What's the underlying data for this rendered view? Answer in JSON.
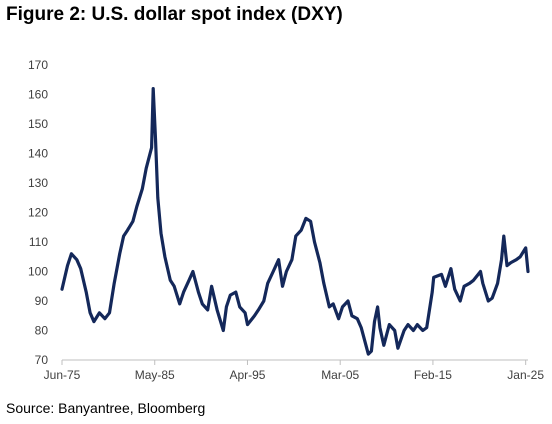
{
  "title": "Figure 2: U.S. dollar spot index (DXY)",
  "source": "Source: Banyantree, Bloomberg",
  "colors": {
    "line": "#14285a",
    "axis": "#bfbfbf",
    "tick_text": "#404040"
  },
  "chart_data": {
    "type": "line",
    "title": "Figure 2: U.S. dollar spot index (DXY)",
    "xlabel": "",
    "ylabel": "",
    "x_tick_labels": [
      "Jun-75",
      "May-85",
      "Apr-95",
      "Mar-05",
      "Feb-15",
      "Jan-25"
    ],
    "x_tick_dates": [
      "1975-06",
      "1985-05",
      "1995-04",
      "2005-03",
      "2015-02",
      "2025-01"
    ],
    "y_ticks": [
      70,
      80,
      90,
      100,
      110,
      120,
      130,
      140,
      150,
      160,
      170
    ],
    "ylim": [
      70,
      170
    ],
    "xlim": [
      "1975-06",
      "2025-04"
    ],
    "grid": false,
    "legend": "none",
    "series": [
      {
        "x": [
          "1975-06",
          "1976-01",
          "1976-06",
          "1977-01",
          "1977-06",
          "1978-01",
          "1978-06",
          "1978-11",
          "1979-06",
          "1980-01",
          "1980-07",
          "1981-01",
          "1981-08",
          "1982-01",
          "1982-06",
          "1983-01",
          "1983-06",
          "1984-01",
          "1984-06",
          "1985-01",
          "1985-03",
          "1985-06",
          "1985-09",
          "1986-01",
          "1986-06",
          "1987-01",
          "1987-06",
          "1988-01",
          "1988-06",
          "1989-01",
          "1989-06",
          "1990-01",
          "1990-06",
          "1991-01",
          "1991-06",
          "1992-01",
          "1992-09",
          "1993-01",
          "1993-06",
          "1994-01",
          "1994-06",
          "1995-01",
          "1995-04",
          "1996-01",
          "1996-06",
          "1997-01",
          "1997-06",
          "1998-01",
          "1998-08",
          "1999-01",
          "1999-06",
          "2000-01",
          "2000-06",
          "2001-01",
          "2001-07",
          "2002-01",
          "2002-06",
          "2003-01",
          "2003-06",
          "2004-01",
          "2004-06",
          "2005-01",
          "2005-06",
          "2006-01",
          "2006-06",
          "2007-01",
          "2007-06",
          "2008-03",
          "2008-07",
          "2008-11",
          "2009-03",
          "2009-06",
          "2009-11",
          "2010-06",
          "2011-01",
          "2011-05",
          "2012-01",
          "2012-06",
          "2013-01",
          "2013-06",
          "2014-01",
          "2014-06",
          "2015-01",
          "2015-03",
          "2016-01",
          "2016-06",
          "2017-01",
          "2017-06",
          "2018-01",
          "2018-06",
          "2019-01",
          "2019-06",
          "2020-03",
          "2020-06",
          "2021-01",
          "2021-06",
          "2022-01",
          "2022-06",
          "2022-09",
          "2023-01",
          "2023-06",
          "2024-01",
          "2024-06",
          "2025-01",
          "2025-04"
        ],
        "y": [
          94,
          102,
          106,
          104,
          101,
          93,
          86,
          83,
          86,
          84,
          86,
          96,
          106,
          112,
          114,
          117,
          122,
          128,
          135,
          142,
          162,
          145,
          125,
          113,
          105,
          97,
          95,
          89,
          93,
          97,
          100,
          93,
          89,
          87,
          95,
          87,
          80,
          88,
          92,
          93,
          88,
          86,
          82,
          85,
          87,
          90,
          96,
          100,
          104,
          95,
          100,
          104,
          112,
          114,
          118,
          117,
          110,
          103,
          96,
          88,
          89,
          84,
          88,
          90,
          85,
          84,
          81,
          72,
          73,
          83,
          88,
          81,
          75,
          82,
          80,
          74,
          80,
          82,
          80,
          82,
          80,
          81,
          93,
          98,
          99,
          95,
          101,
          94,
          90,
          95,
          96,
          97,
          100,
          96,
          90,
          91,
          96,
          104,
          112,
          102,
          103,
          104,
          105,
          108,
          100
        ]
      }
    ]
  }
}
